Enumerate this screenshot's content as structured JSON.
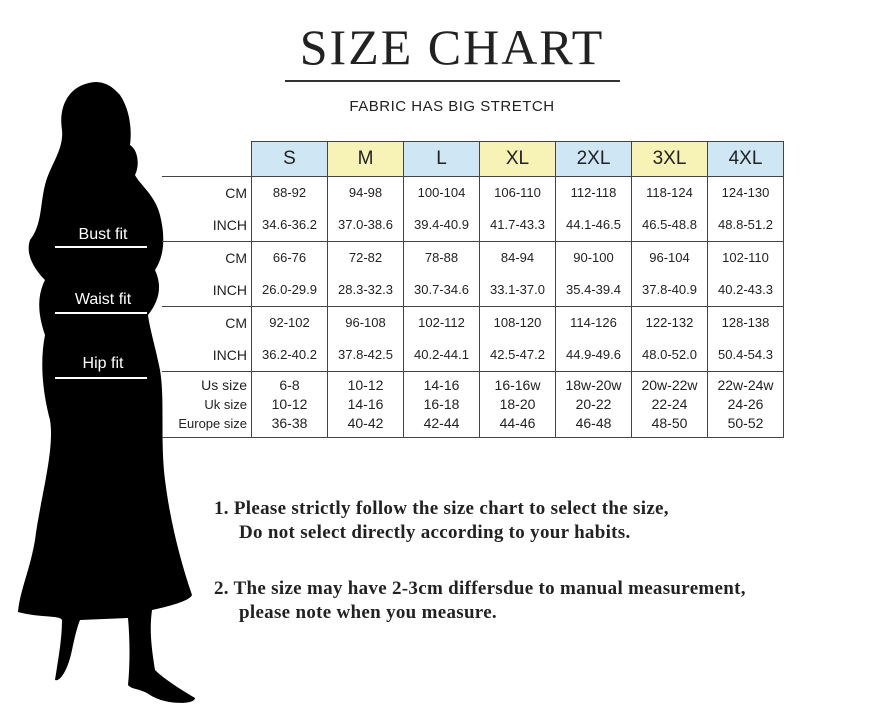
{
  "title": "SIZE CHART",
  "subtitle": "FABRIC HAS BIG STRETCH",
  "sizes": [
    {
      "label": "S",
      "color": "#cfe6f5"
    },
    {
      "label": "M",
      "color": "#f7f2b5"
    },
    {
      "label": "L",
      "color": "#cfe6f5"
    },
    {
      "label": "XL",
      "color": "#f7f2b5"
    },
    {
      "label": "2XL",
      "color": "#cfe6f5"
    },
    {
      "label": "3XL",
      "color": "#f7f2b5"
    },
    {
      "label": "4XL",
      "color": "#cfe6f5"
    }
  ],
  "fit_labels": {
    "bust": "Bust fit",
    "waist": "Waist fit",
    "hip": "Hip fit"
  },
  "units": {
    "cm": "CM",
    "inch": "INCH"
  },
  "bust": {
    "cm": [
      "88-92",
      "94-98",
      "100-104",
      "106-110",
      "112-118",
      "118-124",
      "124-130"
    ],
    "inch": [
      "34.6-36.2",
      "37.0-38.6",
      "39.4-40.9",
      "41.7-43.3",
      "44.1-46.5",
      "46.5-48.8",
      "48.8-51.2"
    ]
  },
  "waist": {
    "cm": [
      "66-76",
      "72-82",
      "78-88",
      "84-94",
      "90-100",
      "96-104",
      "102-110"
    ],
    "inch": [
      "26.0-29.9",
      "28.3-32.3",
      "30.7-34.6",
      "33.1-37.0",
      "35.4-39.4",
      "37.8-40.9",
      "40.2-43.3"
    ]
  },
  "hip": {
    "cm": [
      "92-102",
      "96-108",
      "102-112",
      "108-120",
      "114-126",
      "122-132",
      "128-138"
    ],
    "inch": [
      "36.2-40.2",
      "37.8-42.5",
      "40.2-44.1",
      "42.5-47.2",
      "44.9-49.6",
      "48.0-52.0",
      "50.4-54.3"
    ]
  },
  "conversion": {
    "labels": [
      "Us size",
      "Uk size",
      "Europe size"
    ],
    "us": [
      "6-8",
      "10-12",
      "14-16",
      "16-16w",
      "18w-20w",
      "20w-22w",
      "22w-24w"
    ],
    "uk": [
      "10-12",
      "14-16",
      "16-18",
      "18-20",
      "20-22",
      "22-24",
      "24-26"
    ],
    "eu": [
      "36-38",
      "40-42",
      "42-44",
      "44-46",
      "46-48",
      "48-50",
      "50-52"
    ]
  },
  "notes": [
    {
      "line1": "1.  Please strictly follow the size chart to select the size,",
      "line2": "Do not select directly according to your habits."
    },
    {
      "line1": "2.  The size may have 2-3cm differsdue to manual measurement,",
      "line2": "please note when you measure."
    }
  ]
}
